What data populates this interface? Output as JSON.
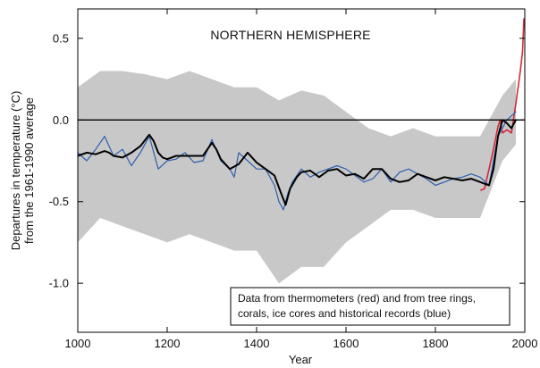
{
  "chart_data": {
    "type": "line",
    "title": "NORTHERN HEMISPHERE",
    "xlabel": "Year",
    "ylabel_lines": [
      "Departures in temperature (°C)",
      "from the 1961-1990 average"
    ],
    "xlim": [
      1000,
      2000
    ],
    "ylim": [
      -1.3,
      0.68
    ],
    "xticks": [
      1000,
      1200,
      1400,
      1600,
      1800,
      2000
    ],
    "xtick_labels": [
      "1000",
      "1200",
      "1400",
      "1600",
      "1800",
      "2000"
    ],
    "yticks": [
      0.5,
      0.0,
      -0.5,
      -1.0
    ],
    "ytick_labels": [
      "0.5",
      "0.0",
      "-0.5",
      "-1.0"
    ],
    "zero_line": 0.0,
    "grid": false,
    "annotation_lines": [
      "Data from thermometers (red) and from tree rings,",
      "corals, ice cores and historical records (blue)"
    ],
    "annotation_position": "bottom-right",
    "colors": {
      "uncertainty_band": "#c8c8c8",
      "proxy": "#2f5fb0",
      "thermometer": "#d12a3a",
      "smoothed": "#000000",
      "axes": "#000000"
    },
    "series": [
      {
        "name": "thermometers (red)",
        "style": "thermometer",
        "x": [
          1902,
          1910,
          1920,
          1930,
          1940,
          1945,
          1950,
          1960,
          1970,
          1980,
          1985,
          1990,
          1995,
          1998
        ],
        "y": [
          -0.43,
          -0.42,
          -0.3,
          -0.18,
          -0.04,
          0.0,
          -0.08,
          -0.06,
          -0.08,
          0.1,
          0.2,
          0.3,
          0.42,
          0.62
        ]
      },
      {
        "name": "tree rings, corals, ice cores and historical records (blue)",
        "style": "proxy",
        "x": [
          1000,
          1020,
          1040,
          1060,
          1080,
          1100,
          1120,
          1140,
          1160,
          1180,
          1200,
          1220,
          1240,
          1260,
          1280,
          1300,
          1320,
          1340,
          1350,
          1360,
          1380,
          1400,
          1420,
          1440,
          1450,
          1460,
          1470,
          1480,
          1500,
          1520,
          1540,
          1560,
          1580,
          1600,
          1620,
          1640,
          1660,
          1680,
          1700,
          1720,
          1740,
          1760,
          1780,
          1800,
          1820,
          1840,
          1860,
          1880,
          1900,
          1920,
          1940,
          1960,
          1980
        ],
        "y": [
          -0.2,
          -0.25,
          -0.18,
          -0.1,
          -0.22,
          -0.18,
          -0.28,
          -0.2,
          -0.1,
          -0.3,
          -0.25,
          -0.24,
          -0.2,
          -0.26,
          -0.25,
          -0.12,
          -0.25,
          -0.3,
          -0.35,
          -0.2,
          -0.25,
          -0.3,
          -0.3,
          -0.4,
          -0.5,
          -0.55,
          -0.45,
          -0.38,
          -0.3,
          -0.35,
          -0.32,
          -0.3,
          -0.28,
          -0.3,
          -0.34,
          -0.38,
          -0.36,
          -0.3,
          -0.38,
          -0.32,
          -0.3,
          -0.33,
          -0.36,
          -0.4,
          -0.38,
          -0.36,
          -0.35,
          -0.33,
          -0.35,
          -0.4,
          -0.1,
          0.0,
          0.05
        ]
      },
      {
        "name": "smoothed",
        "style": "smoothed",
        "x": [
          1000,
          1020,
          1040,
          1060,
          1070,
          1080,
          1100,
          1120,
          1140,
          1160,
          1170,
          1180,
          1190,
          1200,
          1220,
          1240,
          1260,
          1280,
          1290,
          1300,
          1310,
          1320,
          1340,
          1360,
          1380,
          1400,
          1420,
          1440,
          1455,
          1465,
          1475,
          1490,
          1500,
          1520,
          1540,
          1560,
          1580,
          1600,
          1620,
          1640,
          1660,
          1680,
          1700,
          1720,
          1740,
          1760,
          1780,
          1800,
          1820,
          1840,
          1860,
          1880,
          1900,
          1920,
          1930,
          1940,
          1950,
          1960,
          1970,
          1980
        ],
        "y": [
          -0.22,
          -0.2,
          -0.21,
          -0.19,
          -0.2,
          -0.22,
          -0.23,
          -0.2,
          -0.16,
          -0.09,
          -0.13,
          -0.2,
          -0.23,
          -0.24,
          -0.22,
          -0.22,
          -0.22,
          -0.22,
          -0.18,
          -0.14,
          -0.18,
          -0.24,
          -0.3,
          -0.27,
          -0.2,
          -0.26,
          -0.3,
          -0.34,
          -0.45,
          -0.52,
          -0.42,
          -0.35,
          -0.32,
          -0.31,
          -0.35,
          -0.31,
          -0.3,
          -0.34,
          -0.33,
          -0.36,
          -0.3,
          -0.3,
          -0.36,
          -0.38,
          -0.37,
          -0.33,
          -0.35,
          -0.37,
          -0.35,
          -0.36,
          -0.37,
          -0.36,
          -0.38,
          -0.4,
          -0.3,
          -0.1,
          0.0,
          -0.02,
          -0.05,
          0.0
        ]
      }
    ],
    "uncertainty_band": {
      "x": [
        1000,
        1050,
        1100,
        1150,
        1200,
        1250,
        1300,
        1350,
        1400,
        1450,
        1500,
        1550,
        1600,
        1650,
        1700,
        1750,
        1800,
        1850,
        1900,
        1950,
        1980
      ],
      "upper": [
        0.2,
        0.3,
        0.3,
        0.28,
        0.25,
        0.3,
        0.25,
        0.2,
        0.2,
        0.12,
        0.18,
        0.15,
        0.05,
        -0.05,
        -0.1,
        -0.05,
        -0.1,
        -0.1,
        -0.1,
        0.15,
        0.25
      ],
      "lower": [
        -0.75,
        -0.6,
        -0.65,
        -0.7,
        -0.75,
        -0.7,
        -0.75,
        -0.8,
        -0.8,
        -1.0,
        -0.9,
        -0.9,
        -0.75,
        -0.65,
        -0.55,
        -0.55,
        -0.6,
        -0.6,
        -0.6,
        -0.25,
        -0.15
      ]
    }
  }
}
